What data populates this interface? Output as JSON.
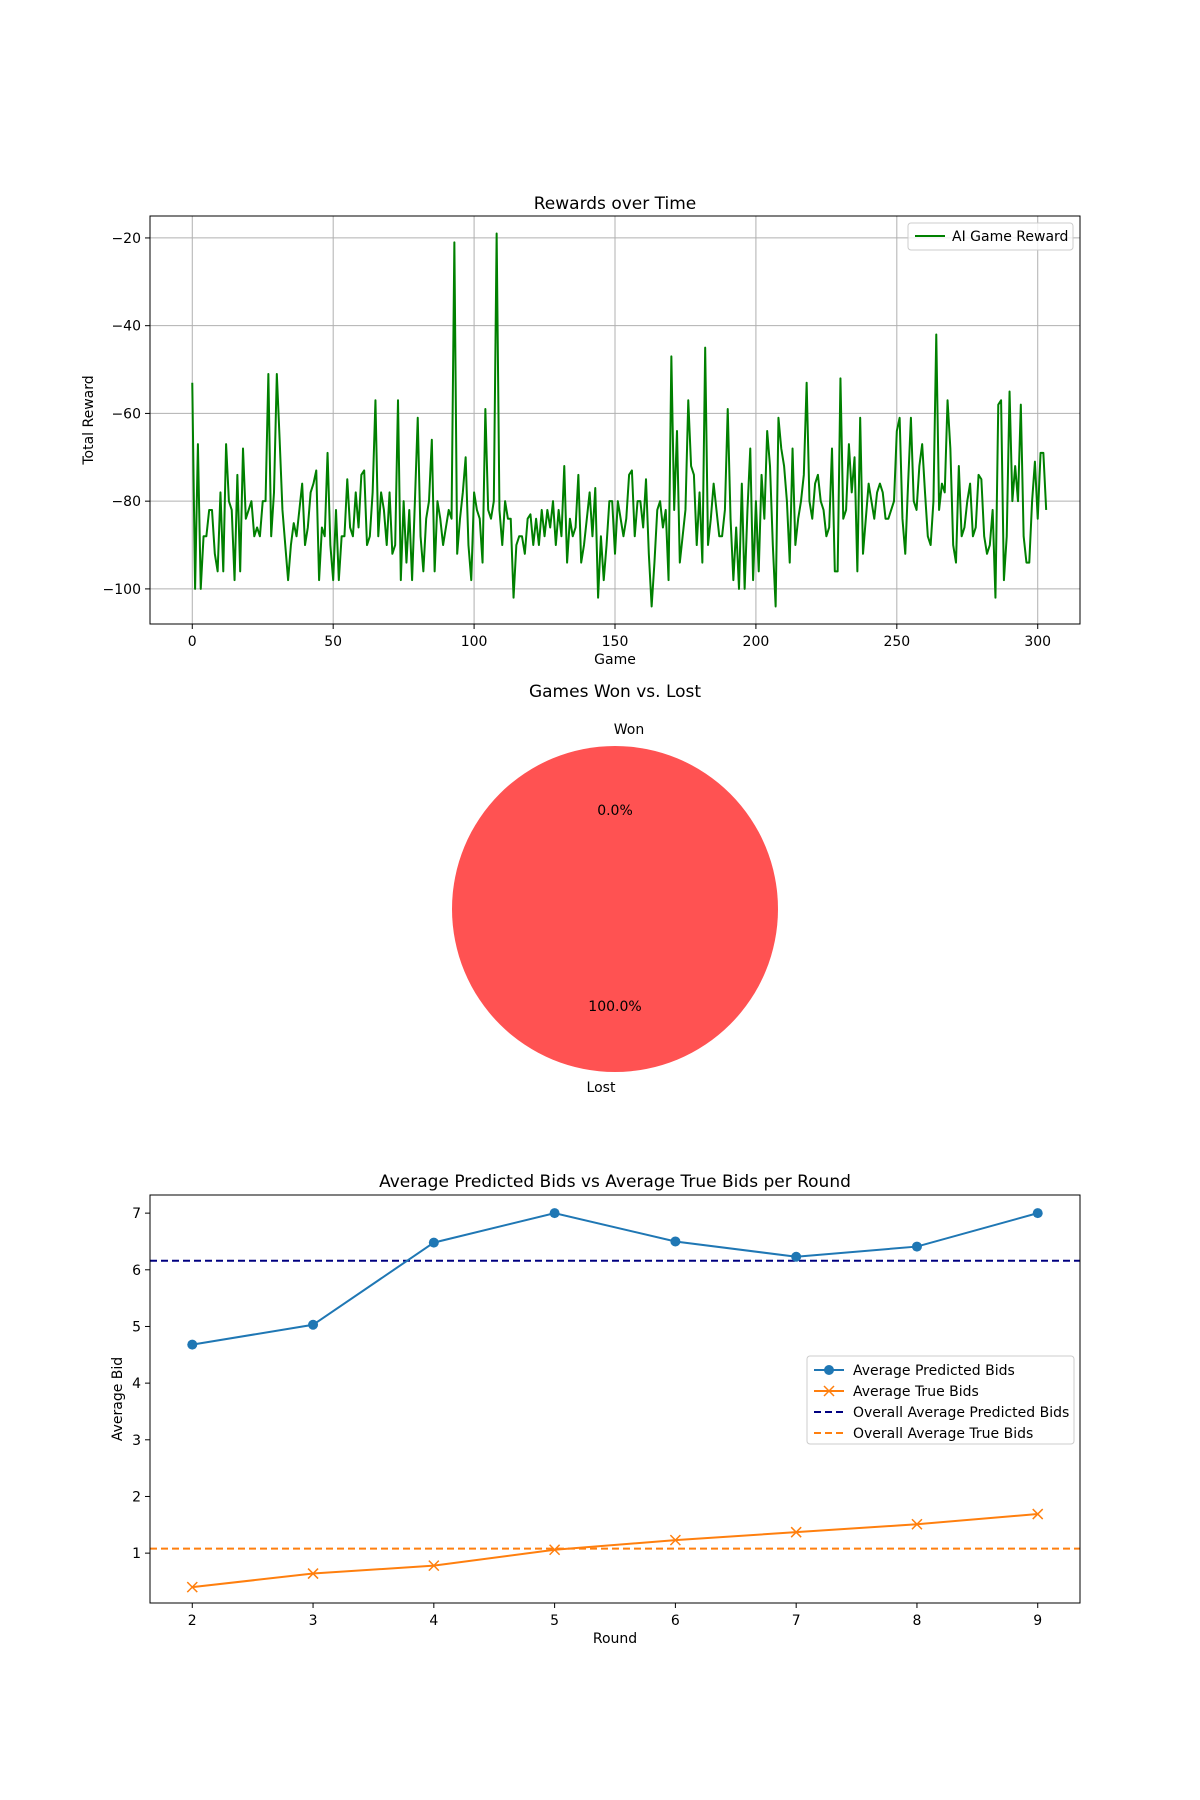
{
  "chart_data": [
    {
      "type": "line",
      "title": "Rewards over Time",
      "xlabel": "Game",
      "ylabel": "Total Reward",
      "xlim": [
        -15,
        315
      ],
      "ylim": [
        -108,
        -15
      ],
      "xticks": [
        0,
        50,
        100,
        150,
        200,
        250,
        300
      ],
      "yticks": [
        -100,
        -80,
        -60,
        -40,
        -20
      ],
      "xtick_labels": [
        "0",
        "50",
        "100",
        "150",
        "200",
        "250",
        "300"
      ],
      "ytick_labels": [
        "−100",
        "−80",
        "−60",
        "−40",
        "−20"
      ],
      "grid": true,
      "legend": "top-right",
      "series": [
        {
          "name": "AI Game Reward",
          "color": "#008000",
          "values": [
            -53,
            -100,
            -67,
            -100,
            -88,
            -88,
            -82,
            -82,
            -92,
            -96,
            -78,
            -96,
            -67,
            -80,
            -82,
            -98,
            -74,
            -96,
            -68,
            -84,
            -82,
            -80,
            -88,
            -86,
            -88,
            -80,
            -80,
            -51,
            -88,
            -78,
            -51,
            -66,
            -82,
            -90,
            -98,
            -90,
            -85,
            -88,
            -82,
            -76,
            -90,
            -86,
            -78,
            -76,
            -73,
            -98,
            -86,
            -88,
            -69,
            -90,
            -98,
            -82,
            -98,
            -88,
            -88,
            -75,
            -86,
            -88,
            -78,
            -86,
            -74,
            -73,
            -90,
            -88,
            -78,
            -57,
            -88,
            -78,
            -82,
            -90,
            -78,
            -92,
            -90,
            -57,
            -98,
            -80,
            -94,
            -82,
            -98,
            -80,
            -61,
            -88,
            -96,
            -84,
            -80,
            -66,
            -96,
            -80,
            -84,
            -90,
            -86,
            -82,
            -84,
            -21,
            -92,
            -84,
            -78,
            -70,
            -90,
            -98,
            -78,
            -82,
            -84,
            -94,
            -59,
            -82,
            -84,
            -80,
            -19,
            -82,
            -90,
            -80,
            -84,
            -84,
            -102,
            -90,
            -88,
            -88,
            -92,
            -84,
            -83,
            -90,
            -84,
            -90,
            -82,
            -88,
            -82,
            -86,
            -80,
            -90,
            -82,
            -88,
            -72,
            -94,
            -84,
            -88,
            -86,
            -74,
            -94,
            -90,
            -84,
            -78,
            -88,
            -77,
            -102,
            -88,
            -98,
            -90,
            -80,
            -80,
            -92,
            -80,
            -84,
            -88,
            -84,
            -74,
            -73,
            -88,
            -80,
            -80,
            -86,
            -75,
            -92,
            -104,
            -94,
            -82,
            -80,
            -86,
            -82,
            -98,
            -47,
            -82,
            -64,
            -94,
            -88,
            -82,
            -57,
            -72,
            -74,
            -90,
            -78,
            -94,
            -45,
            -90,
            -84,
            -76,
            -82,
            -88,
            -88,
            -82,
            -59,
            -84,
            -98,
            -86,
            -100,
            -76,
            -100,
            -82,
            -68,
            -98,
            -80,
            -96,
            -74,
            -84,
            -64,
            -72,
            -90,
            -104,
            -61,
            -68,
            -72,
            -80,
            -94,
            -68,
            -90,
            -84,
            -80,
            -74,
            -53,
            -80,
            -84,
            -76,
            -74,
            -80,
            -82,
            -88,
            -86,
            -68,
            -96,
            -96,
            -52,
            -84,
            -82,
            -67,
            -78,
            -70,
            -96,
            -61,
            -92,
            -84,
            -76,
            -80,
            -84,
            -78,
            -76,
            -78,
            -84,
            -84,
            -82,
            -80,
            -64,
            -61,
            -84,
            -92,
            -76,
            -61,
            -80,
            -82,
            -72,
            -67,
            -78,
            -88,
            -90,
            -80,
            -42,
            -82,
            -76,
            -78,
            -57,
            -68,
            -90,
            -94,
            -72,
            -88,
            -86,
            -80,
            -76,
            -88,
            -86,
            -74,
            -75,
            -88,
            -92,
            -90,
            -82,
            -102,
            -58,
            -57,
            -98,
            -88,
            -55,
            -80,
            -72,
            -80,
            -58,
            -88,
            -94,
            -94,
            -80,
            -71,
            -84,
            -69,
            -69,
            -82
          ]
        }
      ]
    },
    {
      "type": "pie",
      "title": "Games Won vs. Lost",
      "slices": [
        {
          "label": "Won",
          "value": 0.0,
          "pct_label": "0.0%",
          "color": "#4caf50"
        },
        {
          "label": "Lost",
          "value": 100.0,
          "pct_label": "100.0%",
          "color": "#ff5252"
        }
      ]
    },
    {
      "type": "line",
      "title": "Average Predicted Bids vs Average True Bids per Round",
      "xlabel": "Round",
      "ylabel": "Average Bid",
      "categories": [
        2,
        3,
        4,
        5,
        6,
        7,
        8,
        9
      ],
      "xlim": [
        1.65,
        9.35
      ],
      "ylim": [
        0.12,
        7.32
      ],
      "xticks": [
        2,
        3,
        4,
        5,
        6,
        7,
        8,
        9
      ],
      "yticks": [
        1,
        2,
        3,
        4,
        5,
        6,
        7
      ],
      "xtick_labels": [
        "2",
        "3",
        "4",
        "5",
        "6",
        "7",
        "8",
        "9"
      ],
      "ytick_labels": [
        "1",
        "2",
        "3",
        "4",
        "5",
        "6",
        "7"
      ],
      "grid": false,
      "legend": "center-right",
      "series": [
        {
          "name": "Average Predicted Bids",
          "color": "#1f77b4",
          "marker": "circle",
          "values": [
            4.68,
            5.03,
            6.48,
            7.0,
            6.5,
            6.23,
            6.41,
            7.0
          ]
        },
        {
          "name": "Average True Bids",
          "color": "#ff7f0e",
          "marker": "x",
          "values": [
            0.4,
            0.64,
            0.78,
            1.06,
            1.23,
            1.37,
            1.51,
            1.69
          ]
        }
      ],
      "reference_lines": [
        {
          "name": "Overall Average Predicted Bids",
          "color": "#000080",
          "style": "dashed",
          "value": 6.16
        },
        {
          "name": "Overall Average True Bids",
          "color": "#ff7f0e",
          "style": "dashed",
          "value": 1.08
        }
      ]
    }
  ]
}
